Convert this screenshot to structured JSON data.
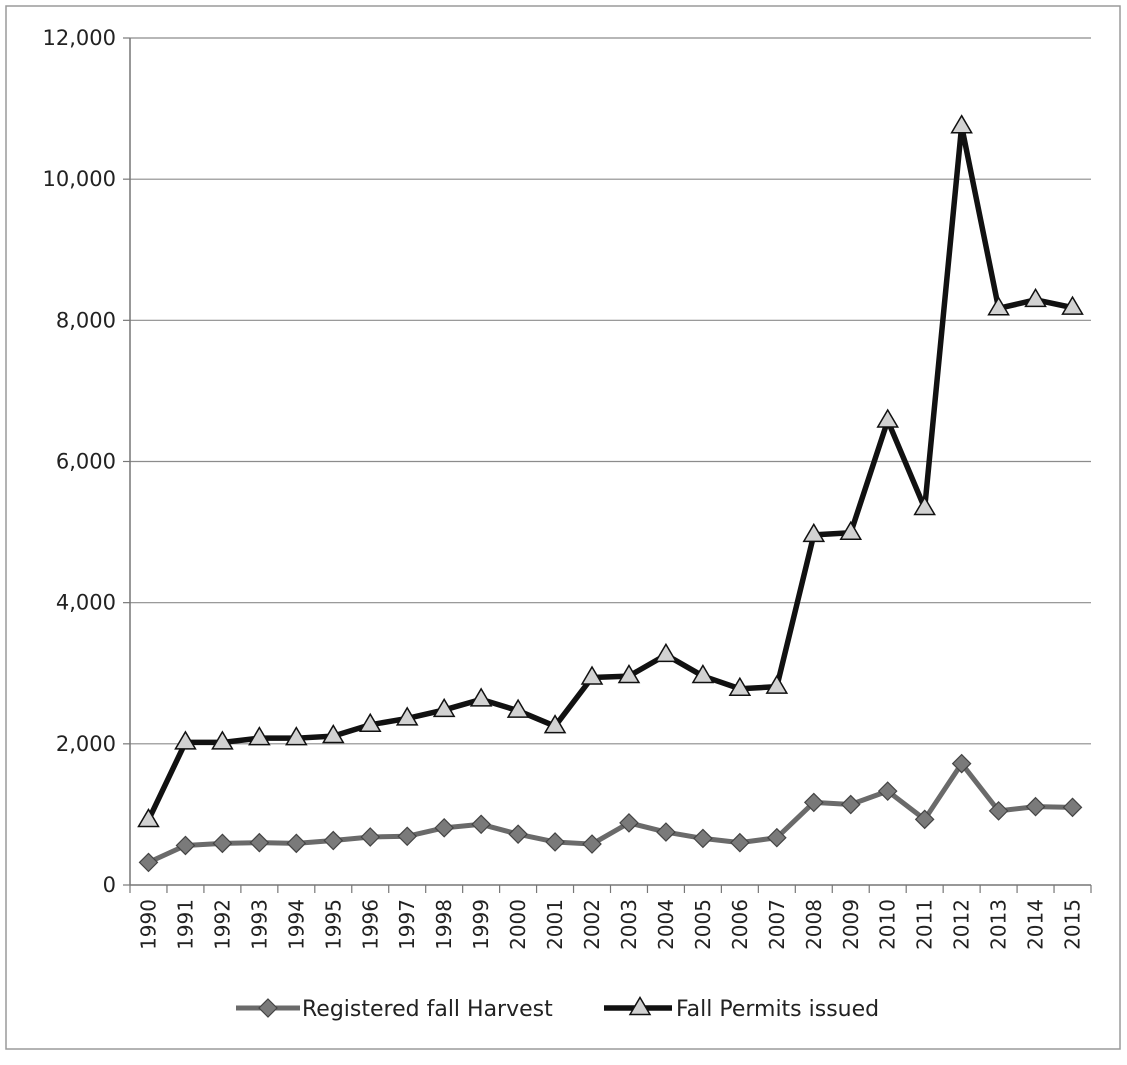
{
  "chart_data": {
    "type": "line",
    "title": "",
    "xlabel": "",
    "ylabel": "",
    "ylim": [
      0,
      12000
    ],
    "y_ticks": [
      0,
      2000,
      4000,
      6000,
      8000,
      10000,
      12000
    ],
    "y_tick_labels": [
      "0",
      "2,000",
      "4,000",
      "6,000",
      "8,000",
      "10,000",
      "12,000"
    ],
    "grid": true,
    "legend_position": "bottom",
    "categories": [
      "1990",
      "1991",
      "1992",
      "1993",
      "1994",
      "1995",
      "1996",
      "1997",
      "1998",
      "1999",
      "2000",
      "2001",
      "2002",
      "2003",
      "2004",
      "2005",
      "2006",
      "2007",
      "2008",
      "2009",
      "2010",
      "2011",
      "2012",
      "2013",
      "2014",
      "2015"
    ],
    "series": [
      {
        "name": "Registered fall Harvest",
        "marker": "diamond",
        "color": "#6a6a6a",
        "values": [
          320,
          560,
          590,
          600,
          590,
          630,
          680,
          690,
          810,
          860,
          720,
          610,
          580,
          880,
          750,
          660,
          600,
          670,
          1170,
          1140,
          1330,
          930,
          1720,
          1050,
          1110,
          1100
        ]
      },
      {
        "name": "Fall Permits issued",
        "marker": "triangle",
        "color": "#111111",
        "values": [
          920,
          2020,
          2020,
          2080,
          2080,
          2110,
          2270,
          2360,
          2480,
          2630,
          2470,
          2250,
          2940,
          2960,
          3260,
          2960,
          2780,
          2810,
          4960,
          4990,
          6580,
          5340,
          10750,
          8170,
          8290,
          8180
        ]
      }
    ]
  }
}
